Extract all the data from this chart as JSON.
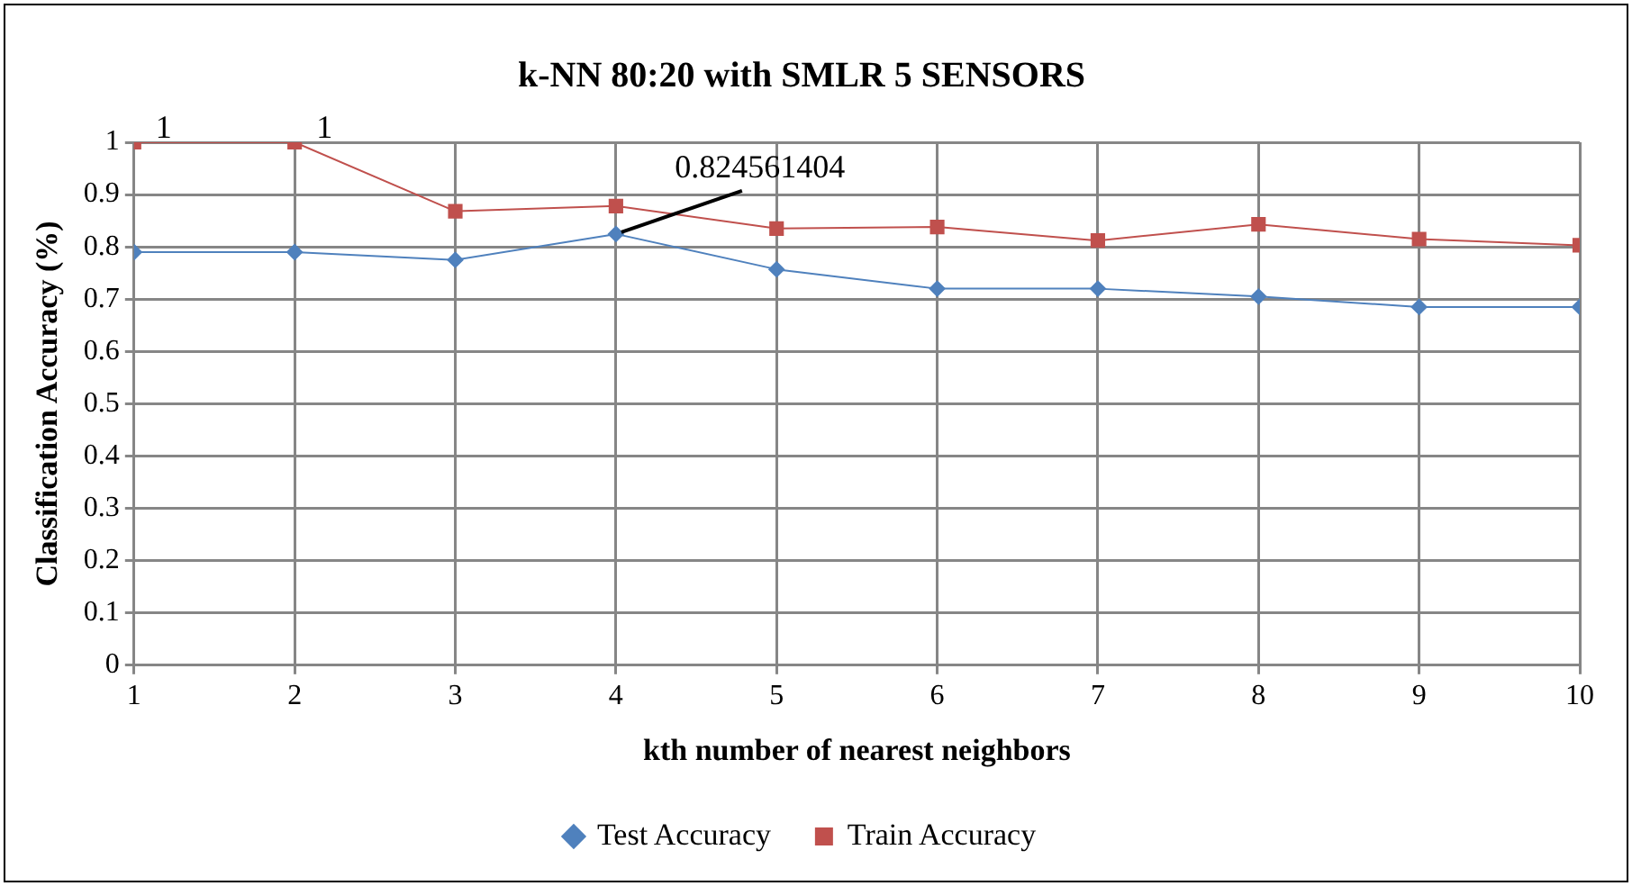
{
  "chart_data": {
    "type": "line",
    "title": "k-NN 80:20 with SMLR 5 SENSORS",
    "xlabel": "kth number of nearest neighbors",
    "ylabel": "Classification Accuracy (%)",
    "x": [
      1,
      2,
      3,
      4,
      5,
      6,
      7,
      8,
      9,
      10
    ],
    "series": [
      {
        "name": "Test Accuracy",
        "color": "#4f81bd",
        "marker": "diamond",
        "values": [
          0.79,
          0.79,
          0.775,
          0.824561404,
          0.757,
          0.72,
          0.72,
          0.705,
          0.685,
          0.685
        ],
        "value_labels": [
          null,
          null,
          null,
          "0.824561404",
          null,
          null,
          null,
          null,
          null,
          null
        ]
      },
      {
        "name": "Train Accuracy",
        "color": "#c0504d",
        "marker": "square",
        "values": [
          1,
          1,
          0.868,
          0.878,
          0.835,
          0.838,
          0.812,
          0.843,
          0.815,
          0.803
        ],
        "value_labels": [
          "1",
          "1",
          null,
          null,
          null,
          null,
          null,
          null,
          null,
          null
        ]
      }
    ],
    "xlim": [
      1,
      10
    ],
    "xticks": [
      1,
      2,
      3,
      4,
      5,
      6,
      7,
      8,
      9,
      10
    ],
    "ylim": [
      0,
      1
    ],
    "yticks": [
      0,
      0.1,
      0.2,
      0.3,
      0.4,
      0.5,
      0.6,
      0.7,
      0.8,
      0.9,
      1
    ],
    "grid": true,
    "legend": "bottom"
  }
}
